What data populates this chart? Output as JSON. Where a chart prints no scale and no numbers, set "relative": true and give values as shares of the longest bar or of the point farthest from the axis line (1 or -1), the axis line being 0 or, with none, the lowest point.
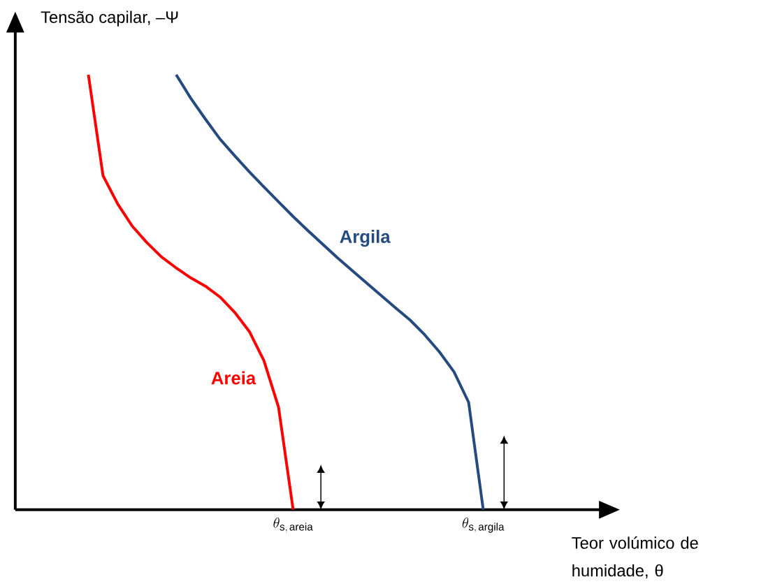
{
  "chart_data": {
    "type": "line",
    "relative": true,
    "xlabel": "Teor volúmico de humidade, θ",
    "ylabel": "Tensão capilar, –Ψ",
    "marker": "none",
    "line_style": "solid",
    "categories": [
      null,
      null,
      null,
      null,
      null,
      null,
      null,
      null,
      null,
      null,
      null,
      null,
      null,
      null,
      null,
      null,
      null,
      null,
      null,
      null,
      null,
      null,
      null,
      null,
      null,
      null,
      null,
      null,
      null,
      null,
      null,
      null,
      null,
      null,
      null,
      null,
      null,
      null,
      null,
      null,
      null
    ],
    "series": [
      {
        "name": "Areia",
        "color": "#ff0000",
        "values": [
          null,
          null,
          null,
          null,
          null,
          1.0,
          0.768,
          0.703,
          0.652,
          0.614,
          0.581,
          0.556,
          0.533,
          0.514,
          0.489,
          0.454,
          0.41,
          0.343,
          0.236,
          0,
          null,
          null,
          null,
          null,
          null,
          null,
          null,
          null,
          null,
          null,
          null,
          null,
          null,
          null,
          null,
          null,
          null,
          null,
          null,
          null,
          null
        ]
      },
      {
        "name": "Argila",
        "color": "#244a80",
        "values": [
          null,
          null,
          null,
          null,
          null,
          null,
          null,
          null,
          null,
          null,
          null,
          1.0,
          0.946,
          0.898,
          0.852,
          0.814,
          0.777,
          0.742,
          0.708,
          0.674,
          0.642,
          0.611,
          0.58,
          0.551,
          0.522,
          0.493,
          0.464,
          0.436,
          0.402,
          0.363,
          0.317,
          0.247,
          0,
          null,
          null,
          null,
          null,
          null,
          null,
          null,
          null
        ]
      }
    ],
    "annotations": [
      "\\theta_{\\mathrm{s,\\,areia}}",
      "\\theta_{\\mathrm{s,\\,argila}}"
    ]
  }
}
